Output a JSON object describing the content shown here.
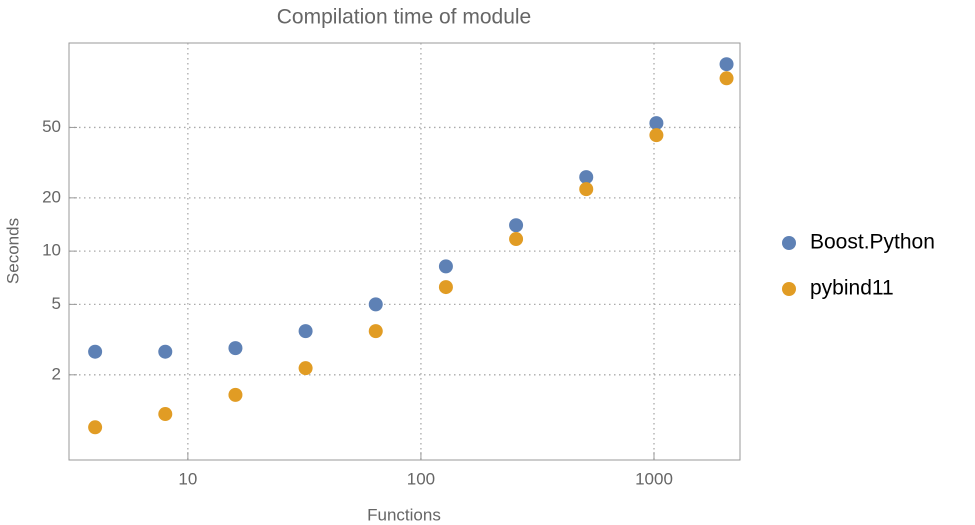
{
  "chart_data": {
    "type": "scatter",
    "title": "Compilation time of module",
    "x_label": "Functions",
    "y_label": "Seconds",
    "xlog": true,
    "ylog": true,
    "grid": true,
    "legend": "right",
    "xlim": [
      3.09,
      2339
    ],
    "ylim": [
      0.66,
      150
    ],
    "xticks": [
      10,
      100,
      1000
    ],
    "yticks": [
      2,
      5,
      10,
      20,
      50
    ],
    "series": [
      {
        "name": "Boost.Python",
        "color": "#5e81b5",
        "x": [
          4,
          8,
          16,
          32,
          64,
          128,
          256,
          512,
          1024,
          2048
        ],
        "values": [
          2.7,
          2.7,
          2.83,
          3.53,
          5.0,
          8.2,
          14.0,
          26.2,
          52.9,
          113.8
        ]
      },
      {
        "name": "pybind11",
        "color": "#e19c24",
        "x": [
          4,
          8,
          16,
          32,
          64,
          128,
          256,
          512,
          1024,
          2048
        ],
        "values": [
          1.01,
          1.2,
          1.54,
          2.18,
          3.53,
          6.26,
          11.7,
          22.4,
          45.2,
          94.8
        ]
      }
    ]
  }
}
